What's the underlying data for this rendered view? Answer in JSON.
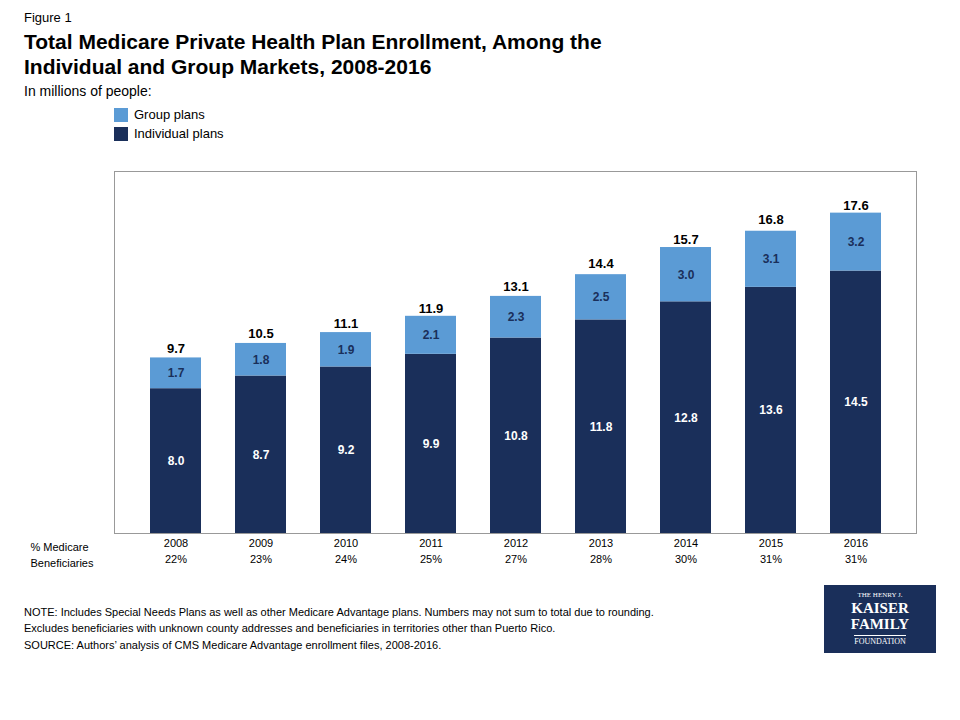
{
  "chart_data": {
    "type": "bar",
    "stacked": true,
    "figure_label": "Figure 1",
    "title": "Total Medicare Private Health Plan Enrollment, Among the\nIndividual and Group Markets, 2008-2016",
    "subtitle": "In millions of people:",
    "categories": [
      "2008",
      "2009",
      "2010",
      "2011",
      "2012",
      "2013",
      "2014",
      "2015",
      "2016"
    ],
    "series": [
      {
        "name": "Individual plans",
        "color": "#1a2f5a",
        "values": [
          8.0,
          8.7,
          9.2,
          9.9,
          10.8,
          11.8,
          12.8,
          13.6,
          14.5
        ],
        "value_labels": [
          "8.0",
          "8.7",
          "9.2",
          "9.9",
          "10.8",
          "11.8",
          "12.8",
          "13.6",
          "14.5"
        ]
      },
      {
        "name": "Group plans",
        "color": "#5b9bd5",
        "values": [
          1.7,
          1.8,
          1.9,
          2.1,
          2.3,
          2.5,
          3.0,
          3.1,
          3.2
        ],
        "value_labels": [
          "1.7",
          "1.8",
          "1.9",
          "2.1",
          "2.3",
          "2.5",
          "3.0",
          "3.1",
          "3.2"
        ]
      }
    ],
    "totals": [
      9.7,
      10.5,
      11.1,
      11.9,
      13.1,
      14.4,
      15.7,
      16.8,
      17.6
    ],
    "row_label": "% Medicare\nBeneficiaries",
    "pct_beneficiaries": [
      "22%",
      "23%",
      "24%",
      "25%",
      "27%",
      "28%",
      "30%",
      "31%",
      "31%"
    ],
    "notes": [
      "NOTE:  Includes Special Needs Plans as well as other Medicare Advantage plans.   Numbers may not sum to total due to rounding.",
      "Excludes beneficiaries with unknown county addresses and beneficiaries in territories other than Puerto Rico.",
      "SOURCE:  Authors’ analysis of CMS Medicare Advantage enrollment files, 2008-2016."
    ],
    "logo": [
      "THE HENRY J.",
      "KAISER",
      "FAMILY",
      "FOUNDATION"
    ],
    "ylim": [
      0,
      20
    ],
    "data_labels": true,
    "tick_labels": "x",
    "grid": false,
    "legend": "upper left"
  }
}
